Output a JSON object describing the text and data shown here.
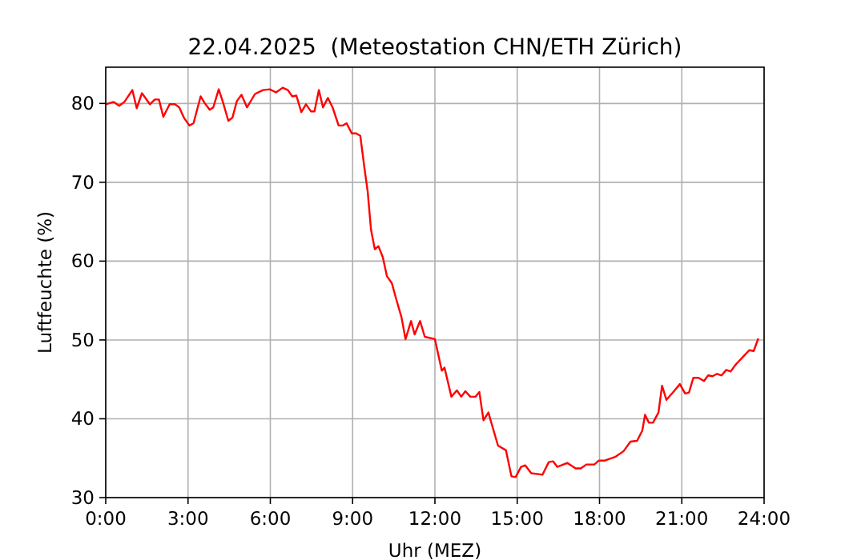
{
  "chart_data": {
    "type": "line",
    "title": "22.04.2025  (Meteostation CHN/ETH Zürich)",
    "xlabel": "Uhr (MEZ)",
    "ylabel": "Luftfeuchte (%)",
    "xlim": [
      0,
      24
    ],
    "xticks": [
      {
        "value": 0,
        "label": "0:00"
      },
      {
        "value": 3,
        "label": "3:00"
      },
      {
        "value": 6,
        "label": "6:00"
      },
      {
        "value": 9,
        "label": "9:00"
      },
      {
        "value": 12,
        "label": "12:00"
      },
      {
        "value": 15,
        "label": "15:00"
      },
      {
        "value": 18,
        "label": "18:00"
      },
      {
        "value": 21,
        "label": "21:00"
      },
      {
        "value": 24,
        "label": "24:00"
      }
    ],
    "ylim": [
      30,
      84.6
    ],
    "yticks": [
      30,
      40,
      50,
      60,
      70,
      80
    ],
    "grid": true,
    "series": [
      {
        "color": "#ff0000",
        "x": [
          0,
          0.29,
          0.49,
          0.68,
          0.97,
          1.13,
          1.32,
          1.61,
          1.79,
          1.94,
          2.1,
          2.33,
          2.52,
          2.68,
          2.85,
          3.05,
          3.2,
          3.46,
          3.6,
          3.79,
          3.92,
          4.12,
          4.27,
          4.47,
          4.62,
          4.78,
          4.95,
          5.15,
          5.44,
          5.73,
          5.98,
          6.21,
          6.45,
          6.64,
          6.8,
          6.95,
          7.13,
          7.3,
          7.48,
          7.61,
          7.77,
          7.92,
          8.1,
          8.27,
          8.49,
          8.64,
          8.78,
          8.97,
          9.13,
          9.28,
          9.42,
          9.55,
          9.67,
          9.81,
          9.94,
          10.1,
          10.25,
          10.43,
          10.58,
          10.78,
          10.93,
          11.13,
          11.26,
          11.46,
          11.63,
          12,
          12.25,
          12.35,
          12.6,
          12.8,
          12.96,
          13.11,
          13.29,
          13.48,
          13.62,
          13.77,
          13.95,
          14.14,
          14.3,
          14.59,
          14.79,
          14.94,
          15.14,
          15.29,
          15.51,
          15.92,
          16.15,
          16.31,
          16.46,
          16.83,
          17.13,
          17.32,
          17.52,
          17.81,
          17.98,
          18.2,
          18.59,
          18.88,
          19.13,
          19.37,
          19.56,
          19.66,
          19.8,
          19.95,
          20.15,
          20.28,
          20.44,
          20.69,
          20.93,
          21.12,
          21.26,
          21.42,
          21.61,
          21.81,
          21.96,
          22.12,
          22.29,
          22.45,
          22.62,
          22.78,
          22.97,
          23.27,
          23.46,
          23.62,
          23.79
        ],
        "values": [
          79.9,
          80.2,
          79.7,
          80.2,
          81.7,
          79.4,
          81.3,
          79.9,
          80.5,
          80.5,
          78.3,
          79.9,
          79.9,
          79.5,
          78.2,
          77.2,
          77.5,
          80.9,
          80.1,
          79.2,
          79.5,
          81.8,
          80.2,
          77.8,
          78.2,
          80.3,
          81.1,
          79.5,
          81.2,
          81.7,
          81.8,
          81.4,
          82.0,
          81.7,
          80.9,
          81.0,
          78.9,
          79.9,
          79.0,
          79.0,
          81.7,
          79.5,
          80.7,
          79.5,
          77.2,
          77.2,
          77.5,
          76.2,
          76.2,
          75.9,
          72.1,
          68.8,
          64.0,
          61.5,
          61.9,
          60.5,
          58.1,
          57.2,
          55.3,
          52.9,
          50.1,
          52.4,
          50.7,
          52.4,
          50.4,
          50.1,
          46.1,
          46.5,
          42.8,
          43.6,
          42.8,
          43.5,
          42.8,
          42.8,
          43.4,
          39.8,
          40.8,
          38.5,
          36.6,
          36.0,
          32.7,
          32.6,
          33.9,
          34.1,
          33.1,
          32.9,
          34.5,
          34.6,
          33.9,
          34.4,
          33.7,
          33.7,
          34.2,
          34.2,
          34.7,
          34.7,
          35.2,
          35.9,
          37.1,
          37.2,
          38.5,
          40.5,
          39.5,
          39.5,
          40.8,
          44.2,
          42.4,
          43.4,
          44.4,
          43.2,
          43.3,
          45.2,
          45.2,
          44.8,
          45.5,
          45.4,
          45.7,
          45.5,
          46.2,
          46.0,
          46.9,
          48.0,
          48.7,
          48.6,
          50.2
        ]
      }
    ]
  }
}
